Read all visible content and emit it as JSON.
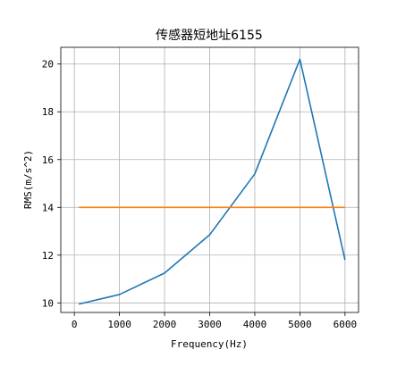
{
  "chart_data": {
    "type": "line",
    "title": "传感器短地址6155",
    "xlabel": "Frequency(Hz)",
    "ylabel": "RMS(m/s^2)",
    "xlim": [
      -300,
      6300
    ],
    "ylim": [
      9.6,
      20.7
    ],
    "xticks": [
      0,
      1000,
      2000,
      3000,
      4000,
      5000,
      6000
    ],
    "yticks": [
      10,
      12,
      14,
      16,
      18,
      20
    ],
    "grid": true,
    "series": [
      {
        "color": "#1f77b4",
        "x": [
          100,
          1000,
          2000,
          3000,
          4000,
          5000,
          6000
        ],
        "y": [
          9.95,
          10.35,
          11.25,
          12.85,
          15.4,
          20.2,
          11.8
        ]
      },
      {
        "color": "#ff7f0e",
        "x": [
          100,
          6000
        ],
        "y": [
          14.0,
          14.0
        ]
      }
    ]
  }
}
